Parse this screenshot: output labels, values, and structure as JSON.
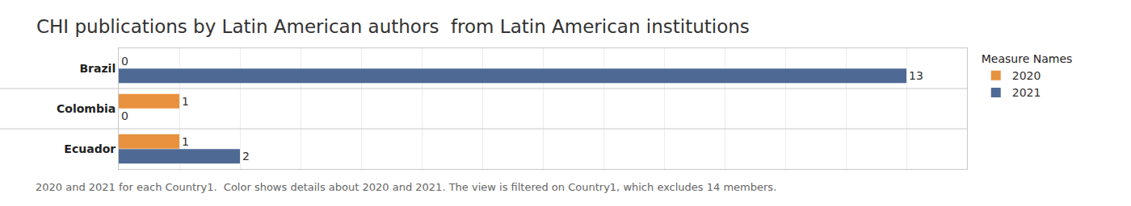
{
  "chart_data": {
    "type": "bar",
    "title": "CHI publications by Latin American authors  from Latin American institutions",
    "caption": "2020 and 2021 for each Country1.  Color shows details about 2020 and 2021. The view is filtered on Country1, which excludes 14 members.",
    "legend_title": "Measure Names",
    "orientation": "horizontal",
    "categories": [
      "Brazil",
      "Colombia",
      "Ecuador"
    ],
    "series": [
      {
        "name": "2020",
        "color": "#e8923f",
        "values": [
          0,
          1,
          1
        ]
      },
      {
        "name": "2021",
        "color": "#4e6a94",
        "values": [
          13,
          0,
          2
        ]
      }
    ],
    "xlim": [
      0,
      14
    ],
    "xticks": [
      0,
      1,
      2,
      3,
      4,
      5,
      6,
      7,
      8,
      9,
      10,
      11,
      12,
      13,
      14
    ],
    "tick_labels": "y",
    "grid": true,
    "data_labels": true,
    "legend": "top right"
  }
}
